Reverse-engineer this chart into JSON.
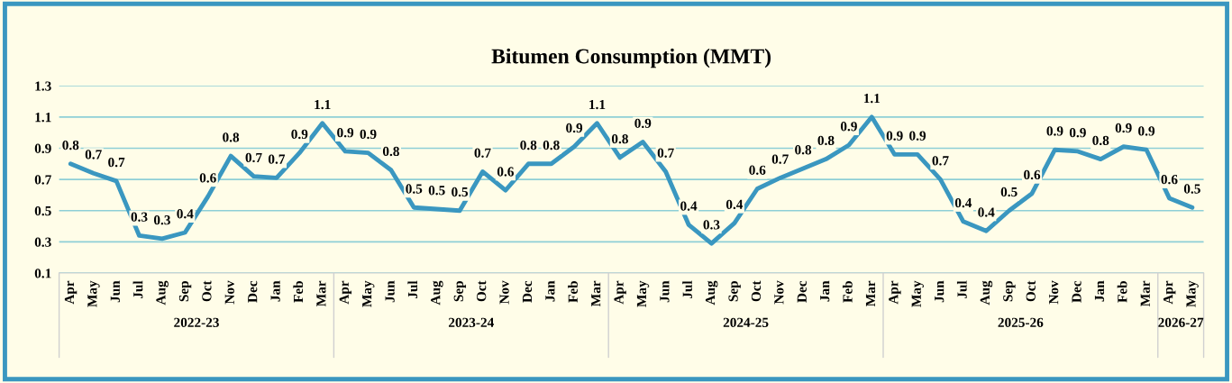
{
  "chart_data": {
    "type": "line",
    "title": "Bitumen Consumption (MMT)",
    "categories": [
      "Apr",
      "May",
      "Jun",
      "Jul",
      "Aug",
      "Sep",
      "Oct",
      "Nov",
      "Dec",
      "Jan",
      "Feb",
      "Mar",
      "Apr",
      "May",
      "Jun",
      "Jul",
      "Aug",
      "Sep",
      "Oct",
      "Nov",
      "Dec",
      "Jan",
      "Feb",
      "Mar",
      "Apr",
      "May",
      "Jun",
      "Jul",
      "Aug",
      "Sep",
      "Oct",
      "Nov",
      "Dec",
      "Jan",
      "Feb",
      "Mar",
      "Apr",
      "May",
      "Jun",
      "Jul",
      "Aug",
      "Sep",
      "Oct",
      "Nov",
      "Dec",
      "Jan",
      "Feb",
      "Mar",
      "Apr",
      "May"
    ],
    "series": [
      {
        "color": "#3a97c0",
        "values": [
          0.8,
          0.74,
          0.69,
          0.34,
          0.32,
          0.36,
          0.59,
          0.85,
          0.72,
          0.71,
          0.87,
          1.06,
          0.88,
          0.87,
          0.76,
          0.52,
          0.51,
          0.5,
          0.75,
          0.63,
          0.8,
          0.8,
          0.91,
          1.06,
          0.84,
          0.94,
          0.75,
          0.41,
          0.29,
          0.42,
          0.64,
          0.71,
          0.77,
          0.83,
          0.92,
          1.1,
          0.86,
          0.86,
          0.7,
          0.43,
          0.37,
          0.5,
          0.61,
          0.89,
          0.88,
          0.83,
          0.91,
          0.89,
          0.58,
          0.52
        ],
        "value_labels": [
          "0.8",
          "0.7",
          "0.7",
          "0.3",
          "0.3",
          "0.4",
          "0.6",
          "0.8",
          "0.7",
          "0.7",
          "0.9",
          "1.1",
          "0.9",
          "0.9",
          "0.8",
          "0.5",
          "0.5",
          "0.5",
          "0.7",
          "0.6",
          "0.8",
          "0.8",
          "0.9",
          "1.1",
          "0.8",
          "0.9",
          "0.7",
          "0.4",
          "0.3",
          "0.4",
          "0.6",
          "0.7",
          "0.8",
          "0.8",
          "0.9",
          "1.1",
          "0.9",
          "0.9",
          "0.7",
          "0.4",
          "0.4",
          "0.5",
          "0.6",
          "0.9",
          "0.9",
          "0.8",
          "0.9",
          "0.9",
          "0.6",
          "0.5"
        ]
      }
    ],
    "ylim": [
      0.1,
      1.3
    ],
    "yticks": [
      0.1,
      0.3,
      0.5,
      0.7,
      0.9,
      1.1,
      1.3
    ],
    "grid": "y",
    "legend": false,
    "marker": "none",
    "line_style": "solid",
    "annotations": [
      "2022-23",
      "2023-24",
      "2024-25",
      "2025-26",
      "2026-27"
    ]
  }
}
